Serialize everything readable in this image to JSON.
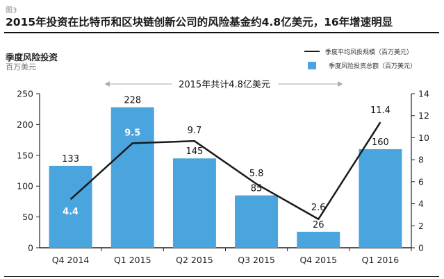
{
  "figure_label": "图3",
  "title": "2015年投资在比特币和区块链创新公司的风险基金约4.8亿美元，16年增速明显",
  "subtitle": "季度风险投资",
  "unit": "百万美元",
  "legend": {
    "line_label": "季度平均风投规模（百万美元）",
    "bar_label": "季度风险投资总额（百万美元）"
  },
  "annotation": "2015年共计4.8亿美元",
  "colors": {
    "bar": "#4aa5de",
    "line": "#1a1a1a"
  },
  "chart_data": {
    "type": "bar",
    "categories": [
      "Q4 2014",
      "Q1 2015",
      "Q2 2015",
      "Q3 2015",
      "Q4 2015",
      "Q1 2016"
    ],
    "series": [
      {
        "name": "季度风险投资总额（百万美元）",
        "type": "bar",
        "axis": "left",
        "values": [
          133,
          228,
          145,
          85,
          26,
          160
        ]
      },
      {
        "name": "季度平均风投规模（百万美元）",
        "type": "line",
        "axis": "right",
        "values": [
          4.4,
          9.5,
          9.7,
          5.8,
          2.6,
          11.4
        ]
      }
    ],
    "left_axis": {
      "ylim": [
        0,
        250
      ],
      "ticks": [
        0,
        50,
        100,
        150,
        200,
        250
      ]
    },
    "right_axis": {
      "ylim": [
        0,
        14
      ],
      "ticks": [
        0,
        2,
        4,
        6,
        8,
        10,
        12,
        14
      ]
    },
    "bar_labels": [
      "133",
      "228",
      "145",
      "85",
      "26",
      "160"
    ],
    "line_labels": [
      "4.4",
      "9.5",
      "9.7",
      "5.8",
      "2.6",
      "11.4"
    ],
    "annotation": "2015年共计4.8亿美元"
  }
}
